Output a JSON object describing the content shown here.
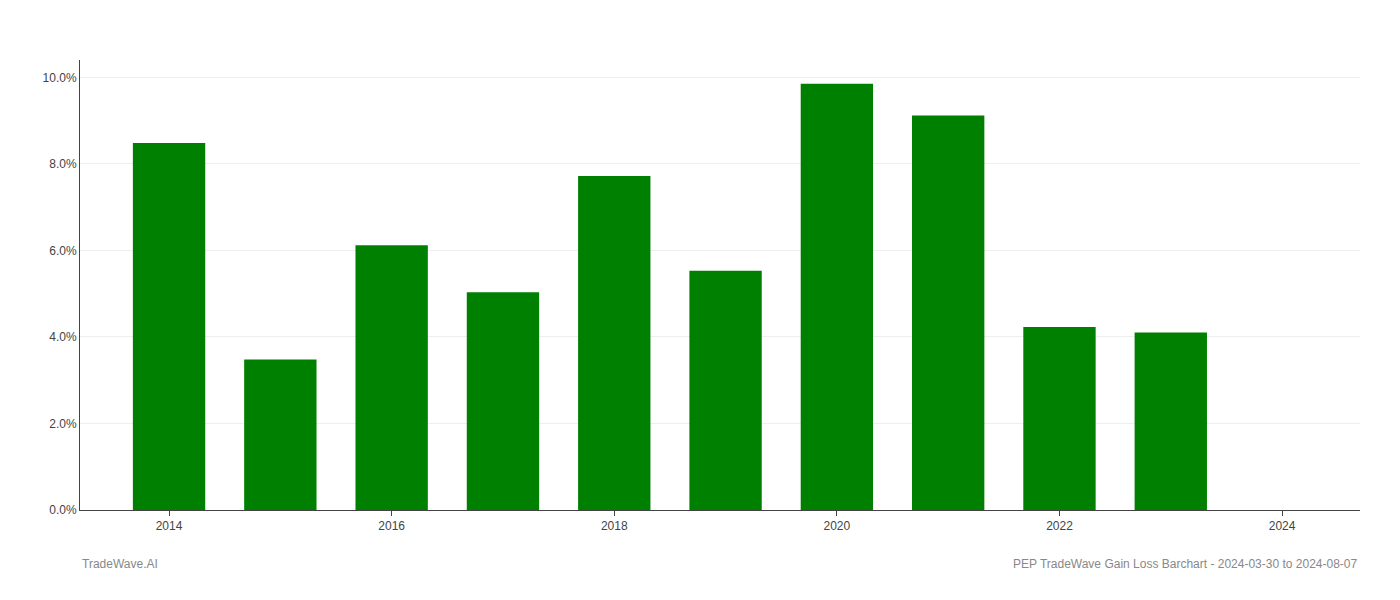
{
  "chart_data": {
    "type": "bar",
    "x": [
      2014,
      2015,
      2016,
      2017,
      2018,
      2019,
      2020,
      2021,
      2022,
      2023
    ],
    "values": [
      0.0848,
      0.0348,
      0.0612,
      0.0503,
      0.0772,
      0.0553,
      0.0985,
      0.0912,
      0.0423,
      0.041
    ],
    "color": "#008000",
    "xlim": [
      2013.2,
      2024.7
    ],
    "xticks": [
      2014,
      2016,
      2018,
      2020,
      2022,
      2024
    ],
    "ylim": [
      0.0,
      0.104
    ],
    "yticks": [
      {
        "value": 0.0,
        "label": "0.0%"
      },
      {
        "value": 0.02,
        "label": "2.0%"
      },
      {
        "value": 0.04,
        "label": "4.0%"
      },
      {
        "value": 0.06,
        "label": "6.0%"
      },
      {
        "value": 0.08,
        "label": "8.0%"
      },
      {
        "value": 0.1,
        "label": "10.0%"
      }
    ],
    "grid": true,
    "annotations": [
      "TradeWave.AI",
      "PEP TradeWave Gain Loss Barchart - 2024-03-30 to 2024-08-07"
    ]
  }
}
